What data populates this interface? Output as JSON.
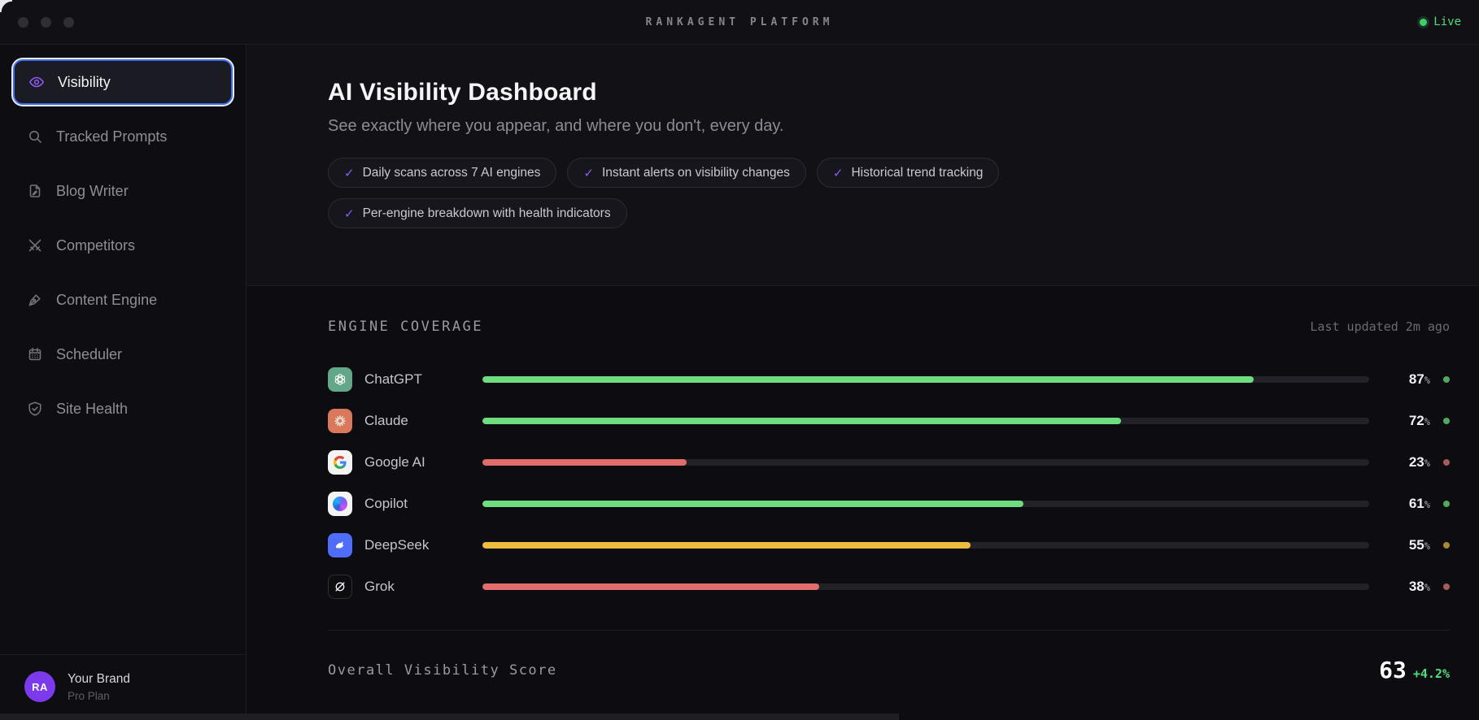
{
  "topbar": {
    "title": "RANKAGENT PLATFORM",
    "live_label": "Live"
  },
  "sidebar": {
    "items": [
      {
        "label": "Visibility",
        "icon": "eye-icon",
        "active": true
      },
      {
        "label": "Tracked Prompts",
        "icon": "search-icon",
        "active": false
      },
      {
        "label": "Blog Writer",
        "icon": "document-pen-icon",
        "active": false
      },
      {
        "label": "Competitors",
        "icon": "crossed-swords-icon",
        "active": false
      },
      {
        "label": "Content Engine",
        "icon": "pen-nib-icon",
        "active": false
      },
      {
        "label": "Scheduler",
        "icon": "calendar-icon",
        "active": false
      },
      {
        "label": "Site Health",
        "icon": "shield-check-icon",
        "active": false
      }
    ],
    "account": {
      "initials": "RA",
      "name": "Your Brand",
      "plan": "Pro Plan"
    }
  },
  "hero": {
    "title": "AI Visibility Dashboard",
    "subtitle": "See exactly where you appear, and where you don't, every day.",
    "check_glyph": "✓",
    "features": [
      "Daily scans across 7 AI engines",
      "Instant alerts on visibility changes",
      "Historical trend tracking",
      "Per-engine breakdown with health indicators"
    ]
  },
  "coverage": {
    "heading": "ENGINE COVERAGE",
    "last_updated": "Last updated 2m ago",
    "percent_sign": "%",
    "engines": [
      {
        "name": "ChatGPT",
        "percent": 87,
        "status": "good",
        "icon_bg": "#62a788"
      },
      {
        "name": "Claude",
        "percent": 72,
        "status": "good",
        "icon_bg": "#d9785a"
      },
      {
        "name": "Google AI",
        "percent": 23,
        "status": "bad",
        "icon_bg": "#f3f3f3"
      },
      {
        "name": "Copilot",
        "percent": 61,
        "status": "good",
        "icon_bg": "#f3f3f3"
      },
      {
        "name": "DeepSeek",
        "percent": 55,
        "status": "warn",
        "icon_bg": "#4e6dfb"
      },
      {
        "name": "Grok",
        "percent": 38,
        "status": "bad",
        "icon_bg": "#0d0d10"
      }
    ]
  },
  "overall": {
    "label": "Overall Visibility Score",
    "score": "63",
    "delta": "+4.2%"
  },
  "colors": {
    "accent_purple": "#8b5cf6",
    "selected_border_blue": "#3f6df2",
    "bar_good": "#6edd80",
    "bar_warn": "#eebd3e",
    "bar_bad": "#e36d6d",
    "live_green": "#4ade80",
    "avatar_purple": "#7c3aed",
    "background": "#0c0c11"
  }
}
